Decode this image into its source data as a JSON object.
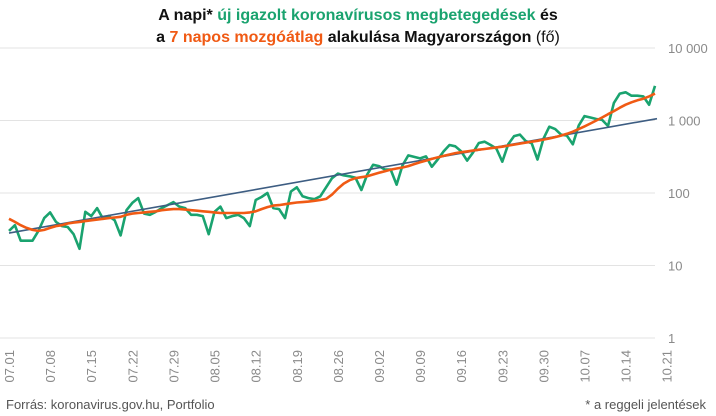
{
  "title": {
    "line1": {
      "part1": "A napi* ",
      "green": "új igazolt koronavírusos megbetegedések",
      "part2": " és"
    },
    "line2": {
      "part1": "a ",
      "orange": "7 napos mozgóátlag",
      "part2": " alakulása Magyarországon",
      "part3": " (fő)"
    }
  },
  "footer": {
    "source": "Forrás: koronavirus.gov.hu, Portfolio",
    "note": "* a reggeli jelentések"
  },
  "colors": {
    "daily": "#1aa36f",
    "moving_avg": "#f05a14",
    "trend": "#3d5d82",
    "grid": "#e3e3e3",
    "tick_text": "#8a8a8a"
  },
  "chart_data": {
    "type": "line",
    "y_scale": "log",
    "ylim": [
      1,
      10000
    ],
    "y_ticks": [
      {
        "value": 1,
        "label": "1"
      },
      {
        "value": 10,
        "label": "10"
      },
      {
        "value": 100,
        "label": "100"
      },
      {
        "value": 1000,
        "label": "1 000"
      },
      {
        "value": 10000,
        "label": "10 000"
      }
    ],
    "x_tick_labels": [
      "07.01",
      "07.08",
      "07.15",
      "07.22",
      "07.29",
      "08.05",
      "08.12",
      "08.19",
      "08.26",
      "09.02",
      "09.09",
      "09.16",
      "09.23",
      "09.30",
      "10.07",
      "10.14",
      "10.21"
    ],
    "x_tick_every": 7,
    "x_count": 111,
    "grid": true,
    "series": [
      {
        "key": "daily",
        "values": [
          30,
          36,
          22,
          22,
          22,
          30,
          45,
          54,
          40,
          35,
          34,
          27,
          17,
          55,
          48,
          62,
          44,
          48,
          42,
          26,
          58,
          73,
          85,
          52,
          50,
          55,
          62,
          68,
          75,
          65,
          62,
          50,
          50,
          48,
          27,
          55,
          65,
          45,
          48,
          50,
          45,
          35,
          80,
          88,
          100,
          62,
          60,
          45,
          105,
          120,
          90,
          85,
          82,
          90,
          120,
          160,
          185,
          175,
          170,
          162,
          110,
          180,
          245,
          235,
          210,
          210,
          130,
          240,
          330,
          315,
          300,
          320,
          230,
          290,
          375,
          460,
          440,
          375,
          280,
          360,
          490,
          510,
          460,
          410,
          270,
          470,
          610,
          640,
          520,
          485,
          290,
          560,
          820,
          760,
          640,
          620,
          470,
          850,
          1150,
          1100,
          1050,
          1020,
          840,
          1750,
          2350,
          2450,
          2200,
          2200,
          2150,
          1650,
          3000
        ]
      },
      {
        "key": "moving_avg",
        "values": [
          44,
          40,
          36,
          33,
          31,
          30,
          31,
          33,
          35,
          36,
          38,
          39,
          40,
          41,
          42,
          43,
          44,
          45,
          46,
          47,
          50,
          52,
          53,
          54,
          55,
          56,
          58,
          59,
          60,
          60,
          59,
          58,
          57,
          56,
          55,
          54,
          53,
          53,
          53,
          53,
          53,
          54,
          56,
          60,
          64,
          67,
          68,
          70,
          72,
          74,
          75,
          76,
          78,
          80,
          83,
          95,
          115,
          135,
          150,
          160,
          165,
          170,
          180,
          190,
          200,
          210,
          218,
          225,
          235,
          250,
          265,
          280,
          295,
          310,
          325,
          340,
          355,
          365,
          375,
          385,
          395,
          405,
          415,
          425,
          435,
          450,
          465,
          480,
          495,
          510,
          525,
          545,
          565,
          590,
          620,
          655,
          700,
          760,
          830,
          910,
          1000,
          1100,
          1220,
          1350,
          1500,
          1650,
          1780,
          1900,
          2000,
          2150,
          2350
        ]
      },
      {
        "key": "trend",
        "values_start_end": [
          28,
          1060
        ]
      }
    ]
  }
}
